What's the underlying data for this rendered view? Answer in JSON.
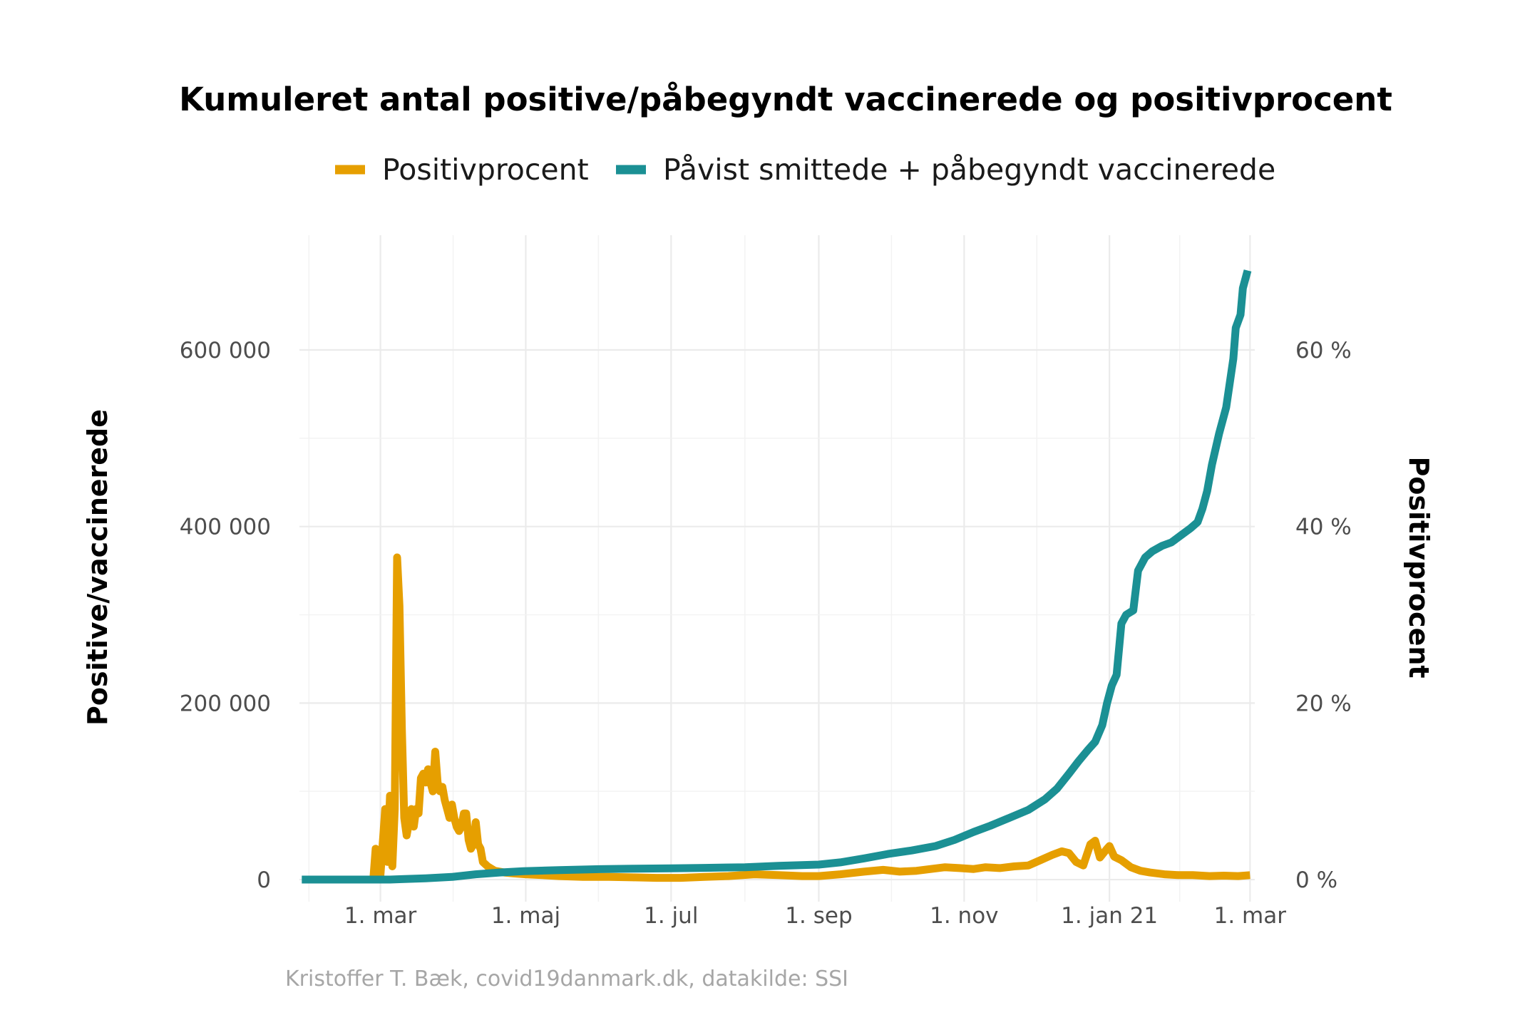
{
  "chart_data": {
    "type": "line",
    "title": "Kumuleret antal positive/påbegyndt vaccinerede og positivprocent",
    "caption": "Kristoffer T. Bæk, covid19danmark.dk, datakilde: SSI",
    "ylabel": "Positive/vaccinerede",
    "y2label": "Positivprocent",
    "legend_position": "top",
    "grid": true,
    "x_range": [
      "2020-01-27",
      "2021-03-03"
    ],
    "x_ticks": [
      {
        "date": "2020-03-01",
        "label": "1. mar"
      },
      {
        "date": "2020-05-01",
        "label": "1. maj"
      },
      {
        "date": "2020-07-01",
        "label": "1. jul"
      },
      {
        "date": "2020-09-01",
        "label": "1. sep"
      },
      {
        "date": "2020-11-01",
        "label": "1. nov"
      },
      {
        "date": "2021-01-01",
        "label": "1. jan 21"
      },
      {
        "date": "2021-03-01",
        "label": "1. mar"
      }
    ],
    "ylim": [
      -25000,
      730000
    ],
    "y_ticks": [
      {
        "value": 0,
        "label": "0"
      },
      {
        "value": 200000,
        "label": "200 000"
      },
      {
        "value": 400000,
        "label": "400 000"
      },
      {
        "value": 600000,
        "label": "600 000"
      }
    ],
    "y2lim": [
      -2.5,
      73
    ],
    "y2_ticks": [
      {
        "value": 0,
        "label": "0 %"
      },
      {
        "value": 20,
        "label": "20 %"
      },
      {
        "value": 40,
        "label": "40 %"
      },
      {
        "value": 60,
        "label": "60 %"
      }
    ],
    "series": [
      {
        "name": "Positivprocent",
        "axis": "y2",
        "color": "#E69F00",
        "points": [
          [
            "2020-02-27",
            0
          ],
          [
            "2020-02-28",
            3.5
          ],
          [
            "2020-03-01",
            0.5
          ],
          [
            "2020-03-03",
            8
          ],
          [
            "2020-03-04",
            2
          ],
          [
            "2020-03-05",
            9.5
          ],
          [
            "2020-03-06",
            1.5
          ],
          [
            "2020-03-07",
            8
          ],
          [
            "2020-03-08",
            36.5
          ],
          [
            "2020-03-09",
            31
          ],
          [
            "2020-03-10",
            17
          ],
          [
            "2020-03-11",
            7
          ],
          [
            "2020-03-12",
            5
          ],
          [
            "2020-03-13",
            6.5
          ],
          [
            "2020-03-14",
            8
          ],
          [
            "2020-03-15",
            6
          ],
          [
            "2020-03-16",
            8
          ],
          [
            "2020-03-17",
            7.5
          ],
          [
            "2020-03-18",
            11.5
          ],
          [
            "2020-03-19",
            12
          ],
          [
            "2020-03-20",
            11
          ],
          [
            "2020-03-21",
            12.5
          ],
          [
            "2020-03-22",
            11
          ],
          [
            "2020-03-23",
            10
          ],
          [
            "2020-03-24",
            14.5
          ],
          [
            "2020-03-25",
            11
          ],
          [
            "2020-03-26",
            10
          ],
          [
            "2020-03-27",
            10.5
          ],
          [
            "2020-03-28",
            9
          ],
          [
            "2020-03-29",
            8
          ],
          [
            "2020-03-30",
            7
          ],
          [
            "2020-03-31",
            8.5
          ],
          [
            "2020-04-01",
            7
          ],
          [
            "2020-04-02",
            6
          ],
          [
            "2020-04-03",
            5.5
          ],
          [
            "2020-04-04",
            6
          ],
          [
            "2020-04-05",
            7.5
          ],
          [
            "2020-04-06",
            7.5
          ],
          [
            "2020-04-07",
            4.5
          ],
          [
            "2020-04-08",
            3.5
          ],
          [
            "2020-04-09",
            4
          ],
          [
            "2020-04-10",
            6.5
          ],
          [
            "2020-04-11",
            4
          ],
          [
            "2020-04-12",
            3.5
          ],
          [
            "2020-04-13",
            2
          ],
          [
            "2020-04-15",
            1.5
          ],
          [
            "2020-04-18",
            1
          ],
          [
            "2020-04-22",
            0.8
          ],
          [
            "2020-04-26",
            0.7
          ],
          [
            "2020-05-01",
            0.6
          ],
          [
            "2020-05-08",
            0.5
          ],
          [
            "2020-05-15",
            0.4
          ],
          [
            "2020-05-25",
            0.3
          ],
          [
            "2020-06-05",
            0.3
          ],
          [
            "2020-06-15",
            0.25
          ],
          [
            "2020-06-25",
            0.2
          ],
          [
            "2020-07-05",
            0.2
          ],
          [
            "2020-07-15",
            0.3
          ],
          [
            "2020-07-25",
            0.4
          ],
          [
            "2020-08-05",
            0.6
          ],
          [
            "2020-08-15",
            0.5
          ],
          [
            "2020-08-25",
            0.4
          ],
          [
            "2020-09-01",
            0.4
          ],
          [
            "2020-09-10",
            0.6
          ],
          [
            "2020-09-20",
            0.9
          ],
          [
            "2020-09-28",
            1.1
          ],
          [
            "2020-10-05",
            0.9
          ],
          [
            "2020-10-12",
            1.0
          ],
          [
            "2020-10-18",
            1.2
          ],
          [
            "2020-10-24",
            1.4
          ],
          [
            "2020-10-30",
            1.3
          ],
          [
            "2020-11-05",
            1.2
          ],
          [
            "2020-11-10",
            1.4
          ],
          [
            "2020-11-16",
            1.3
          ],
          [
            "2020-11-22",
            1.5
          ],
          [
            "2020-11-28",
            1.6
          ],
          [
            "2020-12-03",
            2.2
          ],
          [
            "2020-12-08",
            2.8
          ],
          [
            "2020-12-12",
            3.2
          ],
          [
            "2020-12-15",
            3.0
          ],
          [
            "2020-12-18",
            2.0
          ],
          [
            "2020-12-21",
            1.6
          ],
          [
            "2020-12-24",
            4.0
          ],
          [
            "2020-12-26",
            4.4
          ],
          [
            "2020-12-28",
            2.5
          ],
          [
            "2020-12-31",
            3.5
          ],
          [
            "2021-01-01",
            3.8
          ],
          [
            "2021-01-03",
            2.6
          ],
          [
            "2021-01-06",
            2.2
          ],
          [
            "2021-01-10",
            1.4
          ],
          [
            "2021-01-14",
            1.0
          ],
          [
            "2021-01-18",
            0.8
          ],
          [
            "2021-01-24",
            0.6
          ],
          [
            "2021-01-30",
            0.5
          ],
          [
            "2021-02-05",
            0.5
          ],
          [
            "2021-02-12",
            0.4
          ],
          [
            "2021-02-18",
            0.45
          ],
          [
            "2021-02-24",
            0.4
          ],
          [
            "2021-03-01",
            0.5
          ]
        ]
      },
      {
        "name": "Påvist smittede + påbegyndt vaccinerede",
        "axis": "y",
        "color": "#1B9094",
        "points": [
          [
            "2020-01-28",
            0
          ],
          [
            "2020-02-26",
            0
          ],
          [
            "2020-03-05",
            0
          ],
          [
            "2020-03-10",
            500
          ],
          [
            "2020-03-20",
            1500
          ],
          [
            "2020-03-31",
            3000
          ],
          [
            "2020-04-10",
            6000
          ],
          [
            "2020-04-20",
            8000
          ],
          [
            "2020-04-30",
            9500
          ],
          [
            "2020-05-15",
            10800
          ],
          [
            "2020-06-01",
            11800
          ],
          [
            "2020-06-15",
            12300
          ],
          [
            "2020-07-01",
            12800
          ],
          [
            "2020-07-15",
            13300
          ],
          [
            "2020-08-01",
            14000
          ],
          [
            "2020-08-15",
            15500
          ],
          [
            "2020-09-01",
            17000
          ],
          [
            "2020-09-10",
            19500
          ],
          [
            "2020-09-20",
            24000
          ],
          [
            "2020-09-30",
            29000
          ],
          [
            "2020-10-10",
            33000
          ],
          [
            "2020-10-20",
            38000
          ],
          [
            "2020-10-28",
            45000
          ],
          [
            "2020-11-05",
            54000
          ],
          [
            "2020-11-12",
            61000
          ],
          [
            "2020-11-20",
            70000
          ],
          [
            "2020-11-28",
            79000
          ],
          [
            "2020-12-05",
            91000
          ],
          [
            "2020-12-10",
            103000
          ],
          [
            "2020-12-15",
            120000
          ],
          [
            "2020-12-19",
            134000
          ],
          [
            "2020-12-23",
            147000
          ],
          [
            "2020-12-26",
            156000
          ],
          [
            "2020-12-29",
            175000
          ],
          [
            "2020-12-31",
            200000
          ],
          [
            "2021-01-02",
            220000
          ],
          [
            "2021-01-04",
            232000
          ],
          [
            "2021-01-06",
            290000
          ],
          [
            "2021-01-08",
            300000
          ],
          [
            "2021-01-11",
            305000
          ],
          [
            "2021-01-13",
            350000
          ],
          [
            "2021-01-16",
            365000
          ],
          [
            "2021-01-19",
            372000
          ],
          [
            "2021-01-23",
            378000
          ],
          [
            "2021-01-27",
            382000
          ],
          [
            "2021-01-31",
            390000
          ],
          [
            "2021-02-04",
            398000
          ],
          [
            "2021-02-07",
            405000
          ],
          [
            "2021-02-09",
            420000
          ],
          [
            "2021-02-11",
            440000
          ],
          [
            "2021-02-13",
            470000
          ],
          [
            "2021-02-16",
            505000
          ],
          [
            "2021-02-19",
            535000
          ],
          [
            "2021-02-22",
            590000
          ],
          [
            "2021-02-23",
            625000
          ],
          [
            "2021-02-25",
            640000
          ],
          [
            "2021-02-26",
            670000
          ],
          [
            "2021-02-28",
            690000
          ]
        ]
      }
    ]
  }
}
